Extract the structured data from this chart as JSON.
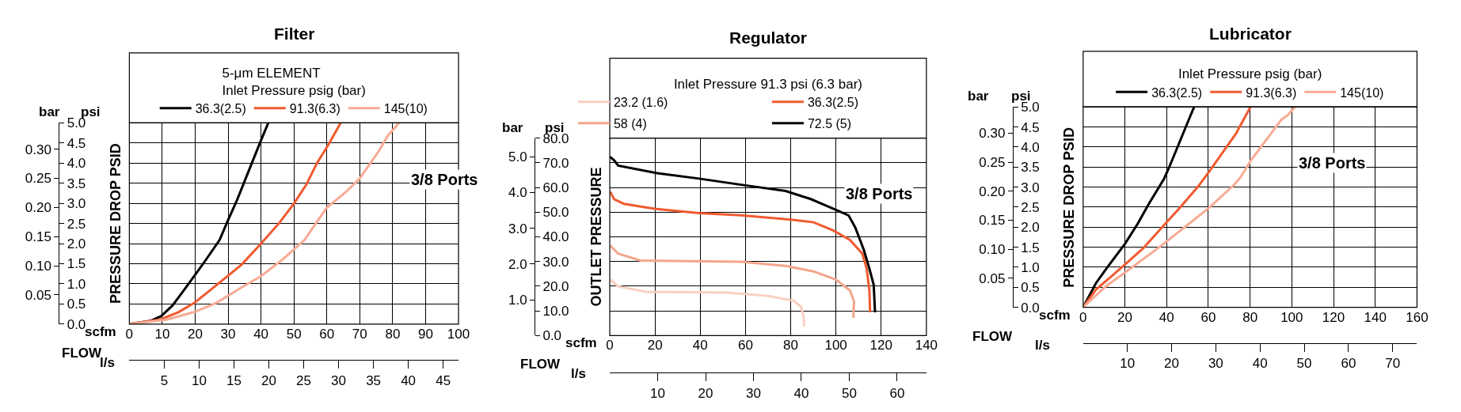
{
  "chart_data": [
    {
      "type": "line",
      "title": "Filter",
      "xlabel": "scfm",
      "x2label": "l/s",
      "ylabel": "PRESSURE DROP PSID",
      "y2label": "bar",
      "legend_title": "5-μm ELEMENT\nInlet Pressure psig (bar)",
      "annotations": [
        "psi",
        "FLOW",
        "3/8 Ports"
      ],
      "xlim": [
        0,
        100
      ],
      "xticks": [
        0,
        10,
        20,
        30,
        40,
        50,
        60,
        70,
        80,
        90,
        100
      ],
      "x2lim": [
        0,
        47.2
      ],
      "x2ticks": [
        5,
        10,
        15,
        20,
        25,
        30,
        35,
        40,
        45
      ],
      "ylim": [
        0,
        5
      ],
      "yticks": [
        {
          "value": 0,
          "label": "0.0"
        },
        0.5,
        {
          "value": 1,
          "label": "1.0"
        },
        1.5,
        {
          "value": 2,
          "label": "2.0"
        },
        2.5,
        {
          "value": 3,
          "label": "3.0"
        },
        3.5,
        {
          "value": 4,
          "label": "4.0"
        },
        4.5,
        {
          "value": 5,
          "label": "5.0"
        }
      ],
      "y2lim": [
        0,
        0.345
      ],
      "y2ticks": [
        0.05,
        {
          "value": 0.1,
          "label": "0.10"
        },
        0.15,
        {
          "value": 0.2,
          "label": "0.20"
        },
        0.25,
        {
          "value": 0.3,
          "label": "0.30"
        }
      ],
      "grid": true,
      "legend": "top",
      "series": [
        {
          "name": "36.3(2.5)",
          "color": "#000000",
          "x": [
            0,
            6.4,
            9.7,
            13.1,
            16.9,
            22.6,
            27.4,
            29.8,
            32.7,
            35.5,
            39.8,
            42.2
          ],
          "values": [
            0,
            0.08,
            0.2,
            0.46,
            0.88,
            1.52,
            2.09,
            2.55,
            3.08,
            3.65,
            4.53,
            5.0
          ]
        },
        {
          "name": "91.3(6.3)",
          "color": "#f05a30",
          "x": [
            0,
            9.3,
            15,
            19.8,
            27.4,
            34.1,
            39.8,
            45.5,
            49.8,
            53.7,
            57,
            60.4,
            64.2
          ],
          "values": [
            0,
            0.11,
            0.3,
            0.53,
            1.03,
            1.48,
            1.98,
            2.51,
            2.97,
            3.46,
            4.0,
            4.45,
            5.0
          ]
        },
        {
          "name": "145(10)",
          "color": "#f7ab94",
          "x": [
            0,
            11.2,
            19.8,
            26.5,
            34.1,
            39.8,
            46.5,
            53.2,
            59.9,
            65.6,
            69.9,
            76.1,
            78.5,
            81.9
          ],
          "values": [
            0,
            0.11,
            0.3,
            0.53,
            0.91,
            1.18,
            1.6,
            2.09,
            2.89,
            3.27,
            3.61,
            4.34,
            4.68,
            5.0
          ]
        }
      ]
    },
    {
      "type": "line",
      "title": "Regulator",
      "xlabel": "scfm",
      "x2label": "l/s",
      "ylabel": "OUTLET PRESSURE",
      "y2label": "bar",
      "legend_title": "Inlet Pressure 91.3 psi (6.3 bar)",
      "annotations": [
        "psi",
        "FLOW",
        "3/8 Ports"
      ],
      "xlim": [
        0,
        140
      ],
      "xticks": [
        0,
        20,
        40,
        60,
        80,
        100,
        120,
        140
      ],
      "x2lim": [
        0,
        66.1
      ],
      "x2ticks": [
        10,
        20,
        30,
        40,
        50,
        60
      ],
      "ylim": [
        0,
        80
      ],
      "yticks": [
        {
          "value": 0,
          "label": "0.0"
        },
        {
          "value": 10,
          "label": "10.0"
        },
        {
          "value": 20,
          "label": "20.0"
        },
        {
          "value": 30,
          "label": "30.0"
        },
        {
          "value": 40,
          "label": "40.0"
        },
        {
          "value": 50,
          "label": "50.0"
        },
        {
          "value": 60,
          "label": "60.0"
        },
        {
          "value": 70,
          "label": "70.0"
        },
        {
          "value": 80,
          "label": "80.0"
        }
      ],
      "y2lim": [
        0,
        5.516
      ],
      "y2ticks": [
        {
          "value": 1,
          "label": "1.0"
        },
        {
          "value": 2,
          "label": "2.0"
        },
        {
          "value": 3,
          "label": "3.0"
        },
        {
          "value": 4,
          "label": "4.0"
        },
        {
          "value": 5,
          "label": "5.0"
        }
      ],
      "grid": true,
      "legend": "top",
      "series": [
        {
          "name": "23.2 (1.6)",
          "color": "#f9cfc0",
          "x": [
            0.2,
            3.7,
            16,
            51.9,
            70.4,
            81.5,
            84.6,
            85.8,
            85.9
          ],
          "values": [
            22.7,
            19.9,
            17.7,
            17.4,
            16,
            14,
            11.6,
            7.2,
            3.7
          ]
        },
        {
          "name": "36.3(2.5)",
          "color": "#f05a30",
          "x": [
            0.2,
            1.9,
            6.2,
            19.8,
            39.5,
            58,
            80.2,
            90.1,
            98.8,
            106.2,
            111.7,
            113.6,
            114.8,
            115.1
          ],
          "values": [
            58.3,
            55.3,
            53.4,
            51.4,
            49.6,
            48.7,
            47,
            45.9,
            42.6,
            38.7,
            33.2,
            27.1,
            18.3,
            9.4
          ]
        },
        {
          "name": "58 (4)",
          "color": "#f4a58c",
          "x": [
            0.2,
            3.7,
            13.6,
            58,
            77.8,
            90.1,
            100,
            106.2,
            108,
            107.7
          ],
          "values": [
            36.5,
            33.2,
            30.4,
            29.9,
            28.2,
            26,
            22.7,
            18.3,
            13.8,
            7.2
          ]
        },
        {
          "name": "72.5 (5)",
          "color": "#000000",
          "x": [
            0,
            1.9,
            3.7,
            21,
            39.5,
            60.5,
            77.8,
            88.9,
            98.8,
            105.6,
            108.6,
            112.3,
            114.8,
            116.7,
            117.3
          ],
          "values": [
            72.5,
            71.1,
            68.9,
            65.8,
            63.6,
            60.8,
            58.6,
            55.3,
            51.4,
            48.7,
            43.7,
            34.8,
            27.1,
            20.5,
            9.4
          ]
        }
      ]
    },
    {
      "type": "line",
      "title": "Lubricator",
      "xlabel": "scfm",
      "x2label": "l/s",
      "ylabel": "PRESSURE DROP PSID",
      "y2label": "bar",
      "legend_title": "Inlet Pressure psig (bar)",
      "annotations": [
        "psi",
        "FLOW",
        "3/8 Ports"
      ],
      "xlim": [
        0,
        160
      ],
      "xticks": [
        0,
        20,
        40,
        60,
        80,
        100,
        120,
        140,
        160
      ],
      "x2lim": [
        0,
        75.5
      ],
      "x2ticks": [
        10,
        20,
        30,
        40,
        50,
        60,
        70
      ],
      "ylim": [
        0,
        5
      ],
      "yticks": [
        {
          "value": 0,
          "label": "0.0"
        },
        0.5,
        {
          "value": 1,
          "label": "1.0"
        },
        1.5,
        {
          "value": 2,
          "label": "2.0"
        },
        2.5,
        {
          "value": 3,
          "label": "3.0"
        },
        3.5,
        {
          "value": 4,
          "label": "4.0"
        },
        4.5,
        {
          "value": 5,
          "label": "5.0"
        }
      ],
      "y2lim": [
        0,
        0.345
      ],
      "y2ticks": [
        0.05,
        {
          "value": 0.1,
          "label": "0.10"
        },
        0.15,
        {
          "value": 0.2,
          "label": "0.20"
        },
        0.25,
        {
          "value": 0.3,
          "label": "0.30"
        }
      ],
      "grid": true,
      "legend": "top",
      "series": [
        {
          "name": "36.3(2.5)",
          "color": "#000000",
          "x": [
            0,
            6.1,
            11.5,
            20.1,
            26.3,
            31,
            38.8,
            41.2,
            46.6,
            50.6,
            53.2
          ],
          "values": [
            0,
            0.6,
            0.99,
            1.59,
            2.1,
            2.54,
            3.21,
            3.49,
            4.17,
            4.68,
            5.0
          ]
        },
        {
          "name": "91.3(6.3)",
          "color": "#f05a30",
          "x": [
            0,
            6.1,
            13.9,
            20.1,
            28.7,
            39.6,
            46.6,
            55.2,
            60.7,
            73.2,
            80.2
          ],
          "values": [
            0,
            0.44,
            0.79,
            1.07,
            1.47,
            2.1,
            2.5,
            3.02,
            3.41,
            4.33,
            5.0
          ]
        },
        {
          "name": "145(10)",
          "color": "#f7ab94",
          "x": [
            0,
            10.8,
            20.1,
            35.7,
            48.2,
            60.7,
            72.4,
            75.5,
            80.2,
            95,
            98.1,
            101.6
          ],
          "values": [
            0,
            0.52,
            0.87,
            1.47,
            1.98,
            2.5,
            3.06,
            3.25,
            3.65,
            4.68,
            4.8,
            5.0
          ]
        }
      ]
    }
  ]
}
